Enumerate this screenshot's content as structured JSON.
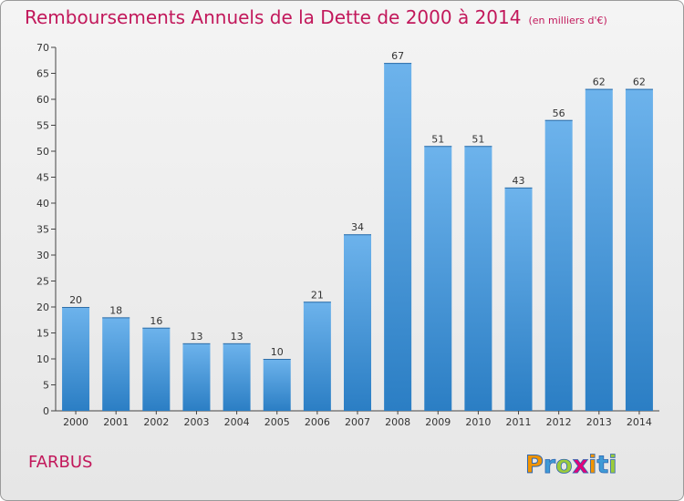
{
  "header": {
    "title": "Remboursements Annuels de la Dette de 2000 à 2014",
    "unit": "(en milliers d'€)"
  },
  "footer": {
    "commune": "FARBUS",
    "logo_text": "Proxiti"
  },
  "colors": {
    "title": "#c2185b",
    "bar_top": "#6db3ec",
    "bar_bottom": "#2b7ec4"
  },
  "chart_data": {
    "type": "bar",
    "title": "Remboursements Annuels de la Dette de 2000 à 2014",
    "subtitle": "(en milliers d'€)",
    "xlabel": "",
    "ylabel": "",
    "categories": [
      "2000",
      "2001",
      "2002",
      "2003",
      "2004",
      "2005",
      "2006",
      "2007",
      "2008",
      "2009",
      "2010",
      "2011",
      "2012",
      "2013",
      "2014"
    ],
    "values": [
      20,
      18,
      16,
      13,
      13,
      10,
      21,
      34,
      67,
      51,
      51,
      43,
      56,
      62,
      62
    ],
    "ylim": [
      0,
      70
    ],
    "yticks": [
      0,
      5,
      10,
      15,
      20,
      25,
      30,
      35,
      40,
      45,
      50,
      55,
      60,
      65,
      70
    ],
    "grid": false,
    "data_labels": true
  }
}
